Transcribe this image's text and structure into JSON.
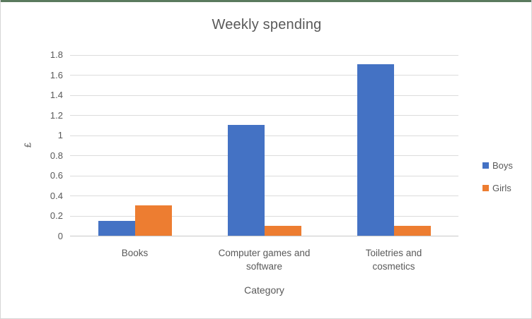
{
  "window": {
    "top_strip_color": "#5a7a5e",
    "border_color": "#d6d6d6",
    "background": "#ffffff"
  },
  "chart_data": {
    "type": "bar",
    "title": "Weekly spending",
    "xlabel": "Category",
    "ylabel": "£",
    "categories": [
      "Books",
      "Computer games and\nsoftware",
      "Toiletries and\ncosmetics"
    ],
    "series": [
      {
        "name": "Boys",
        "color": "#4472C4",
        "values": [
          0.15,
          1.1,
          1.7
        ]
      },
      {
        "name": "Girls",
        "color": "#ED7D31",
        "values": [
          0.3,
          0.1,
          0.1
        ]
      }
    ],
    "ylim": [
      0,
      1.8
    ],
    "ytick_step": 0.2,
    "ytick_labels": [
      "0",
      "0.2",
      "0.4",
      "0.6",
      "0.8",
      "1",
      "1.2",
      "1.4",
      "1.6",
      "1.8"
    ],
    "grid": true,
    "legend_position": "right"
  },
  "colors": {
    "gridline": "#dcdcdc",
    "axis_line": "#c9c9c9",
    "text": "#595959"
  }
}
